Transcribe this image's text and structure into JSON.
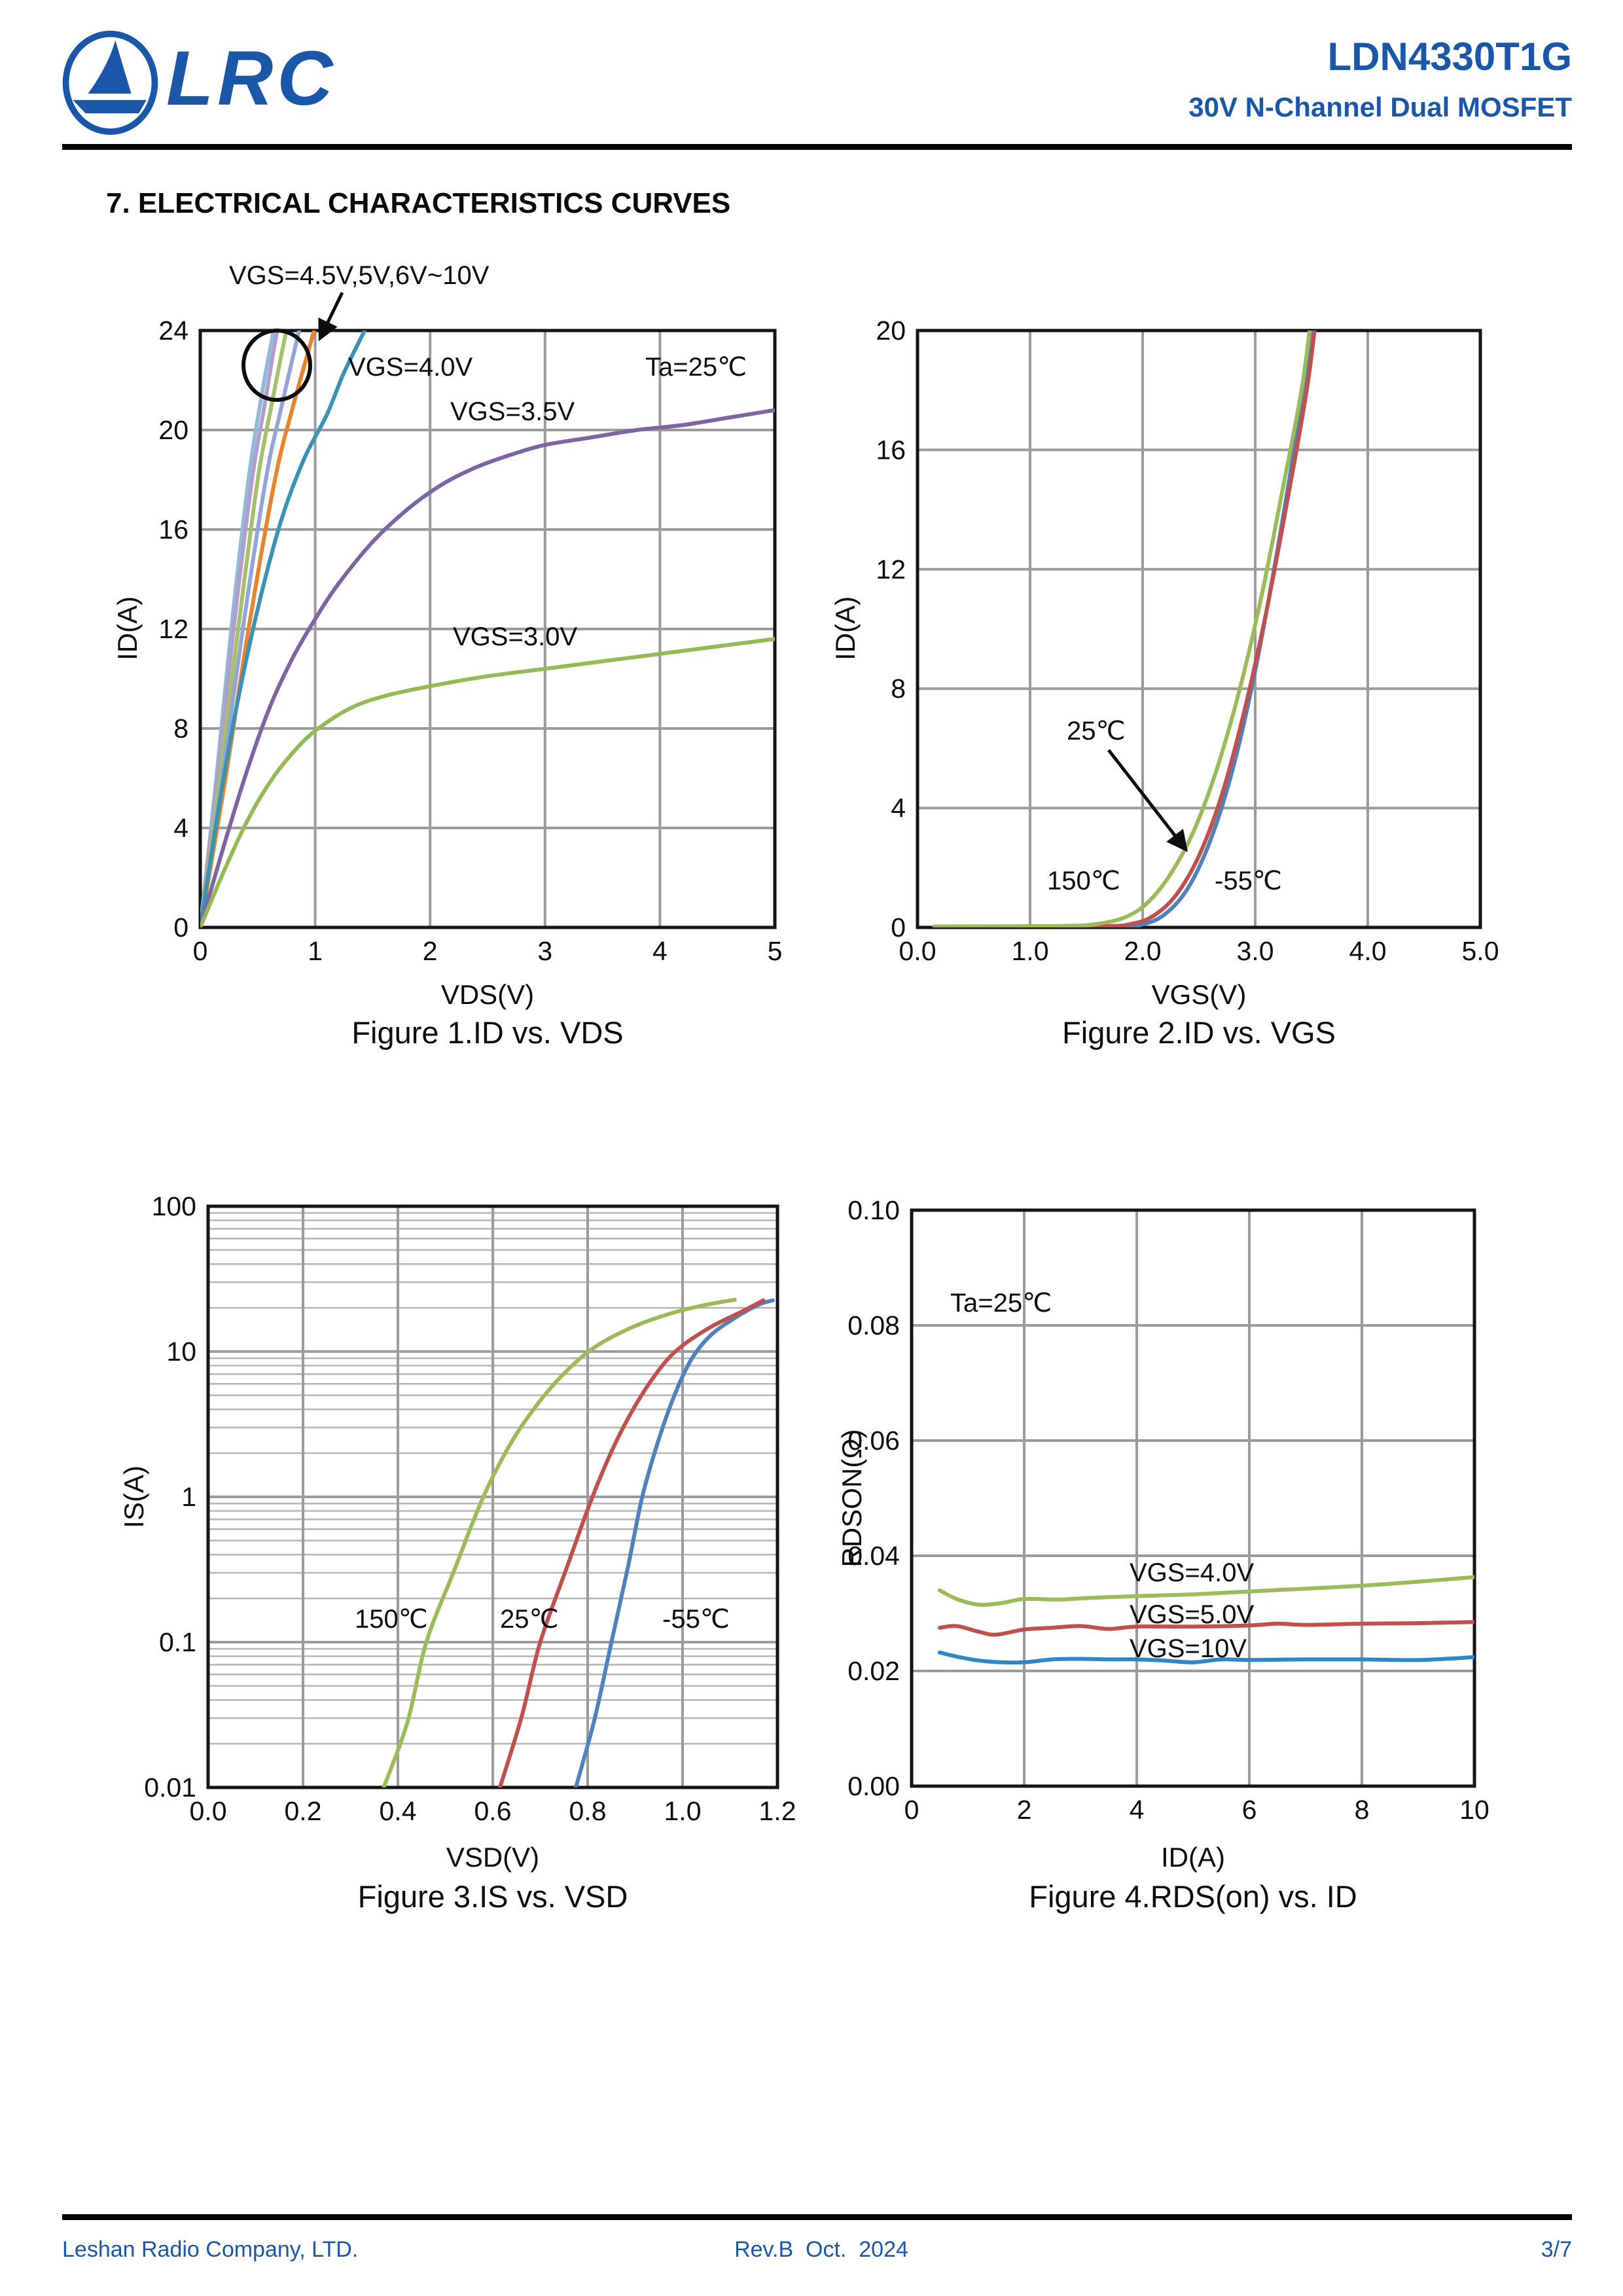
{
  "page": {
    "background": "#ffffff",
    "accent_color": "#1a57a8"
  },
  "header": {
    "logo_text": "LRC",
    "title": "LDN4330T1G",
    "subtitle": "30V N-Channel Dual MOSFET"
  },
  "section_title": "7. ELECTRICAL CHARACTERISTICS CURVES",
  "footer": {
    "company": "Leshan Radio Company, LTD.",
    "revision": "Rev.B  Oct.  2024",
    "page_number": "3/7"
  },
  "chart_data": [
    {
      "id": "fig1",
      "type": "line",
      "title": "Figure 1.ID vs. VDS",
      "xlabel": "VDS(V)",
      "ylabel": "ID(A)",
      "yscale": "linear",
      "xlim": [
        0,
        5
      ],
      "ylim": [
        0,
        24
      ],
      "xticks": [
        "0",
        "1",
        "2",
        "3",
        "4",
        "5"
      ],
      "xtick_vals": [
        0,
        1,
        2,
        3,
        4,
        5
      ],
      "xgrid": [
        1,
        2,
        3,
        4
      ],
      "yticks": [
        "0",
        "4",
        "8",
        "12",
        "16",
        "20",
        "24"
      ],
      "ytick_vals": [
        0,
        4,
        8,
        12,
        16,
        20,
        24
      ],
      "ygrid": [
        4,
        8,
        12,
        16,
        20
      ],
      "grid": true,
      "legend_position": "none",
      "annotations": [
        "VGS=4.5V,5V,6V~10V",
        "VGS=4.0V",
        "Ta=25℃",
        "VGS=3.5V",
        "VGS=3.0V"
      ],
      "series": [
        {
          "name": "VGS=10V",
          "color": "#8fbbd9",
          "points": [
            [
              0,
              0
            ],
            [
              0.14,
              6
            ],
            [
              0.27,
              12
            ],
            [
              0.42,
              18
            ],
            [
              0.52,
              21
            ],
            [
              0.64,
              24
            ],
            [
              0.75,
              26
            ]
          ]
        },
        {
          "name": "VGS=8V",
          "color": "#b09fcc",
          "points": [
            [
              0,
              0
            ],
            [
              0.15,
              6
            ],
            [
              0.29,
              12
            ],
            [
              0.45,
              18
            ],
            [
              0.56,
              21
            ],
            [
              0.67,
              24
            ],
            [
              0.78,
              26
            ]
          ]
        },
        {
          "name": "VGS=6V",
          "color": "#a5c06a",
          "points": [
            [
              0,
              0
            ],
            [
              0.17,
              6
            ],
            [
              0.33,
              12
            ],
            [
              0.5,
              18
            ],
            [
              0.62,
              21
            ],
            [
              0.75,
              24
            ],
            [
              0.86,
              26
            ]
          ]
        },
        {
          "name": "VGS=5V",
          "color": "#93a4d6",
          "points": [
            [
              0,
              0
            ],
            [
              0.19,
              6
            ],
            [
              0.37,
              12
            ],
            [
              0.57,
              18
            ],
            [
              0.71,
              21
            ],
            [
              0.86,
              24
            ],
            [
              0.97,
              26
            ]
          ]
        },
        {
          "name": "VGS=4.5V",
          "color": "#e8842b",
          "points": [
            [
              0,
              0
            ],
            [
              0.22,
              6
            ],
            [
              0.42,
              12
            ],
            [
              0.65,
              18
            ],
            [
              0.81,
              21
            ],
            [
              0.99,
              24
            ],
            [
              1.1,
              26
            ]
          ]
        },
        {
          "name": "VGS=4.0V",
          "color": "#3a93b4",
          "points": [
            [
              0,
              0
            ],
            [
              0.15,
              4.5
            ],
            [
              0.3,
              8.5
            ],
            [
              0.5,
              12.8
            ],
            [
              0.7,
              16.3
            ],
            [
              0.9,
              18.8
            ],
            [
              1.1,
              20.6
            ],
            [
              1.25,
              22.3
            ],
            [
              1.43,
              24
            ],
            [
              1.55,
              25.2
            ]
          ]
        },
        {
          "name": "VGS=3.5V",
          "color": "#7d64a5",
          "points": [
            [
              0,
              0
            ],
            [
              0.2,
              3.2
            ],
            [
              0.4,
              6.2
            ],
            [
              0.6,
              8.8
            ],
            [
              0.8,
              10.8
            ],
            [
              1.0,
              12.4
            ],
            [
              1.2,
              13.8
            ],
            [
              1.5,
              15.5
            ],
            [
              1.8,
              16.8
            ],
            [
              2.1,
              17.8
            ],
            [
              2.4,
              18.5
            ],
            [
              2.7,
              19.0
            ],
            [
              3.0,
              19.4
            ],
            [
              3.4,
              19.7
            ],
            [
              3.8,
              20.0
            ],
            [
              4.2,
              20.2
            ],
            [
              4.6,
              20.5
            ],
            [
              5.0,
              20.8
            ]
          ]
        },
        {
          "name": "VGS=3.0V",
          "color": "#95b954",
          "points": [
            [
              0,
              0
            ],
            [
              0.2,
              2.2
            ],
            [
              0.4,
              4.2
            ],
            [
              0.6,
              5.8
            ],
            [
              0.8,
              7.0
            ],
            [
              1.0,
              7.9
            ],
            [
              1.3,
              8.8
            ],
            [
              1.6,
              9.3
            ],
            [
              2.0,
              9.7
            ],
            [
              2.5,
              10.1
            ],
            [
              3.0,
              10.4
            ],
            [
              3.5,
              10.7
            ],
            [
              4.0,
              11.0
            ],
            [
              4.5,
              11.3
            ],
            [
              5.0,
              11.6
            ]
          ]
        }
      ]
    },
    {
      "id": "fig2",
      "type": "line",
      "title": "Figure 2.ID vs. VGS",
      "xlabel": "VGS(V)",
      "ylabel": "ID(A)",
      "yscale": "linear",
      "xlim": [
        0,
        5
      ],
      "ylim": [
        0,
        20
      ],
      "xticks": [
        "0.0",
        "1.0",
        "2.0",
        "3.0",
        "4.0",
        "5.0"
      ],
      "xtick_vals": [
        0,
        1,
        2,
        3,
        4,
        5
      ],
      "xgrid": [
        1,
        2,
        3,
        4
      ],
      "yticks": [
        "0",
        "4",
        "8",
        "12",
        "16",
        "20"
      ],
      "ytick_vals": [
        0,
        4,
        8,
        12,
        16,
        20
      ],
      "ygrid": [
        4,
        8,
        12,
        16
      ],
      "grid": true,
      "legend_position": "none",
      "annotations": [
        "25℃",
        "150℃",
        "-55℃"
      ],
      "series": [
        {
          "name": "-55℃",
          "color": "#4f81bd",
          "points": [
            [
              0.15,
              0.01
            ],
            [
              1.75,
              0.03
            ],
            [
              2.0,
              0.1
            ],
            [
              2.2,
              0.45
            ],
            [
              2.4,
              1.3
            ],
            [
              2.6,
              2.9
            ],
            [
              2.8,
              5.3
            ],
            [
              3.0,
              8.6
            ],
            [
              3.2,
              12.7
            ],
            [
              3.38,
              16.8
            ],
            [
              3.5,
              19.6
            ],
            [
              3.56,
              21.5
            ]
          ]
        },
        {
          "name": "25℃",
          "color": "#c0504d",
          "points": [
            [
              0.15,
              0.02
            ],
            [
              1.6,
              0.04
            ],
            [
              1.9,
              0.12
            ],
            [
              2.1,
              0.4
            ],
            [
              2.3,
              1.1
            ],
            [
              2.5,
              2.4
            ],
            [
              2.7,
              4.4
            ],
            [
              2.9,
              7.2
            ],
            [
              3.1,
              10.6
            ],
            [
              3.3,
              14.6
            ],
            [
              3.47,
              18.3
            ],
            [
              3.57,
              21.5
            ]
          ]
        },
        {
          "name": "150℃",
          "color": "#9bbb59",
          "points": [
            [
              0.15,
              0.03
            ],
            [
              1.3,
              0.05
            ],
            [
              1.6,
              0.12
            ],
            [
              1.85,
              0.35
            ],
            [
              2.05,
              0.85
            ],
            [
              2.25,
              1.8
            ],
            [
              2.45,
              3.2
            ],
            [
              2.65,
              5.2
            ],
            [
              2.85,
              7.8
            ],
            [
              3.05,
              11.0
            ],
            [
              3.25,
              14.8
            ],
            [
              3.42,
              18.2
            ],
            [
              3.53,
              21.5
            ]
          ]
        }
      ]
    },
    {
      "id": "fig3",
      "type": "line",
      "title": "Figure 3.IS vs. VSD",
      "xlabel": "VSD(V)",
      "ylabel": "IS(A)",
      "yscale": "log",
      "xlim": [
        0,
        1.2
      ],
      "ylim": [
        0.01,
        100
      ],
      "xticks": [
        "0.0",
        "0.2",
        "0.4",
        "0.6",
        "0.8",
        "1.0",
        "1.2"
      ],
      "xtick_vals": [
        0,
        0.2,
        0.4,
        0.6,
        0.8,
        1.0,
        1.2
      ],
      "xgrid": [
        0.2,
        0.4,
        0.6,
        0.8,
        1.0
      ],
      "yticks": [
        "0.01",
        "0.1",
        "1",
        "10",
        "100"
      ],
      "ytick_vals": [
        0.01,
        0.1,
        1,
        10,
        100
      ],
      "ygrid": [
        0.1,
        1,
        10
      ],
      "grid": true,
      "legend_position": "none",
      "annotations": [
        "150℃",
        "25℃",
        "-55℃"
      ],
      "series": [
        {
          "name": "-55℃",
          "color": "#4f81bd",
          "points": [
            [
              0.775,
              0.01
            ],
            [
              0.815,
              0.03
            ],
            [
              0.85,
              0.1
            ],
            [
              0.885,
              0.33
            ],
            [
              0.915,
              1.0
            ],
            [
              0.95,
              2.5
            ],
            [
              0.985,
              5.2
            ],
            [
              1.02,
              9
            ],
            [
              1.06,
              13
            ],
            [
              1.11,
              17
            ],
            [
              1.16,
              21
            ],
            [
              1.19,
              22.5
            ]
          ]
        },
        {
          "name": "25℃",
          "color": "#c0504d",
          "points": [
            [
              0.615,
              0.01
            ],
            [
              0.66,
              0.03
            ],
            [
              0.7,
              0.1
            ],
            [
              0.755,
              0.32
            ],
            [
              0.81,
              1.0
            ],
            [
              0.86,
              2.4
            ],
            [
              0.91,
              4.8
            ],
            [
              0.96,
              8.2
            ],
            [
              1.0,
              11
            ],
            [
              1.06,
              14.8
            ],
            [
              1.12,
              18.5
            ],
            [
              1.17,
              22.5
            ]
          ]
        },
        {
          "name": "150℃",
          "color": "#9bbb59",
          "points": [
            [
              0.37,
              0.01
            ],
            [
              0.42,
              0.028
            ],
            [
              0.46,
              0.1
            ],
            [
              0.52,
              0.32
            ],
            [
              0.58,
              1.0
            ],
            [
              0.64,
              2.4
            ],
            [
              0.7,
              4.6
            ],
            [
              0.76,
              7.6
            ],
            [
              0.82,
              11
            ],
            [
              0.9,
              15
            ],
            [
              0.98,
              18.5
            ],
            [
              1.05,
              21
            ],
            [
              1.11,
              22.7
            ]
          ]
        }
      ]
    },
    {
      "id": "fig4",
      "type": "line",
      "title": "Figure 4.RDS(on) vs. ID",
      "xlabel": "ID(A)",
      "ylabel": "RDSON(Ω)",
      "yscale": "linear",
      "xlim": [
        0,
        10
      ],
      "ylim": [
        0,
        0.1
      ],
      "xticks": [
        "0",
        "2",
        "4",
        "6",
        "8",
        "10"
      ],
      "xtick_vals": [
        0,
        2,
        4,
        6,
        8,
        10
      ],
      "xgrid": [
        2,
        4,
        6,
        8
      ],
      "yticks": [
        "0.00",
        "0.02",
        "0.04",
        "0.06",
        "0.08",
        "0.10"
      ],
      "ytick_vals": [
        0,
        0.02,
        0.04,
        0.06,
        0.08,
        0.1
      ],
      "ygrid": [
        0.02,
        0.04,
        0.06,
        0.08
      ],
      "grid": true,
      "legend_position": "none",
      "annotations": [
        "Ta=25℃",
        "VGS=4.0V",
        "VGS=5.0V",
        "VGS=10V"
      ],
      "series": [
        {
          "name": "VGS=4.0V",
          "color": "#9bbb59",
          "points": [
            [
              0.5,
              0.034
            ],
            [
              0.8,
              0.0325
            ],
            [
              1.2,
              0.0315
            ],
            [
              1.6,
              0.0318
            ],
            [
              2.0,
              0.0325
            ],
            [
              2.6,
              0.0324
            ],
            [
              3.2,
              0.0327
            ],
            [
              4.0,
              0.033
            ],
            [
              5.0,
              0.0333
            ],
            [
              6.0,
              0.0338
            ],
            [
              7.0,
              0.0343
            ],
            [
              8.0,
              0.0348
            ],
            [
              9.0,
              0.0355
            ],
            [
              10.0,
              0.0363
            ]
          ]
        },
        {
          "name": "VGS=5.0V",
          "color": "#c0504d",
          "points": [
            [
              0.5,
              0.0275
            ],
            [
              0.8,
              0.0278
            ],
            [
              1.2,
              0.0268
            ],
            [
              1.5,
              0.0263
            ],
            [
              2.0,
              0.0272
            ],
            [
              2.5,
              0.0275
            ],
            [
              3.0,
              0.0278
            ],
            [
              3.5,
              0.0273
            ],
            [
              4.0,
              0.0277
            ],
            [
              5.0,
              0.0277
            ],
            [
              6.0,
              0.0279
            ],
            [
              6.5,
              0.0282
            ],
            [
              7.0,
              0.028
            ],
            [
              8.0,
              0.0282
            ],
            [
              9.0,
              0.0283
            ],
            [
              10.0,
              0.0285
            ]
          ]
        },
        {
          "name": "VGS=10V",
          "color": "#2e86c8",
          "points": [
            [
              0.5,
              0.0232
            ],
            [
              0.8,
              0.0225
            ],
            [
              1.2,
              0.0218
            ],
            [
              1.6,
              0.0215
            ],
            [
              2.0,
              0.0215
            ],
            [
              2.5,
              0.022
            ],
            [
              3.0,
              0.0221
            ],
            [
              3.5,
              0.022
            ],
            [
              4.0,
              0.022
            ],
            [
              4.5,
              0.0218
            ],
            [
              5.0,
              0.0215
            ],
            [
              5.5,
              0.022
            ],
            [
              6.0,
              0.0219
            ],
            [
              7.0,
              0.022
            ],
            [
              8.0,
              0.022
            ],
            [
              9.0,
              0.0219
            ],
            [
              10.0,
              0.0224
            ]
          ]
        }
      ]
    }
  ]
}
